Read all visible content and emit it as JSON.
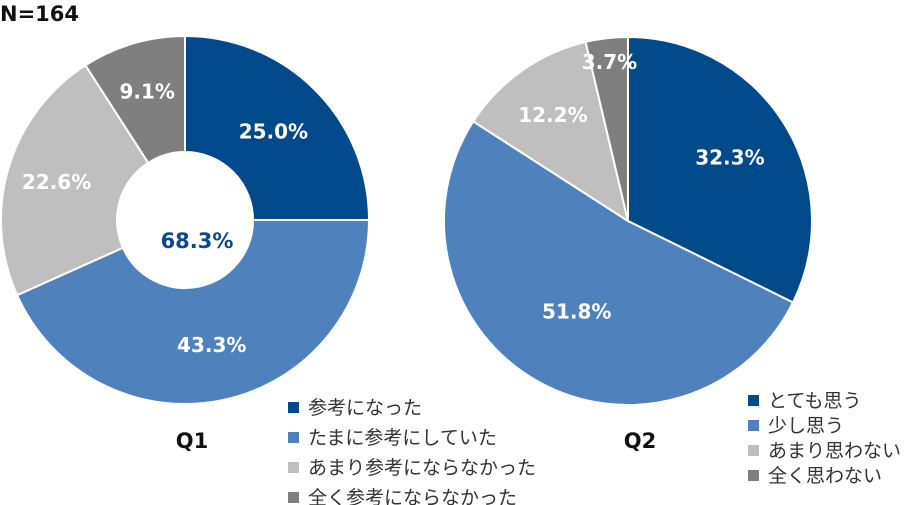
{
  "sample_size": "N=164",
  "chart_data": [
    {
      "type": "pie",
      "variant": "donut",
      "title": "Q1",
      "center_value": "68.3%",
      "center_color": "#0a4a8c",
      "slices": [
        {
          "label": "参考になった",
          "value": 25.0,
          "display": "25.0%",
          "color": "#004a8c",
          "text_color": "#ffffff"
        },
        {
          "label": "たまに参考にしていた",
          "value": 43.3,
          "display": "43.3%",
          "color": "#4f81bd",
          "text_color": "#ffffff"
        },
        {
          "label": "あまり参考にならなかった",
          "value": 22.6,
          "display": "22.6%",
          "color": "#bfbfbf",
          "text_color": "#ffffff"
        },
        {
          "label": "全く参考にならなかった",
          "value": 9.1,
          "display": "9.1%",
          "color": "#7f7f7f",
          "text_color": "#ffffff"
        }
      ]
    },
    {
      "type": "pie",
      "variant": "pie",
      "title": "Q2",
      "slices": [
        {
          "label": "とても思う",
          "value": 32.3,
          "display": "32.3%",
          "color": "#004a8c",
          "text_color": "#ffffff"
        },
        {
          "label": "少し思う",
          "value": 51.8,
          "display": "51.8%",
          "color": "#4f81bd",
          "text_color": "#ffffff"
        },
        {
          "label": "あまり思わない",
          "value": 12.2,
          "display": "12.2%",
          "color": "#bfbfbf",
          "text_color": "#ffffff"
        },
        {
          "label": "全く思わない",
          "value": 3.7,
          "display": "3.7%",
          "color": "#7f7f7f",
          "text_color": "#ffffff"
        }
      ]
    }
  ]
}
